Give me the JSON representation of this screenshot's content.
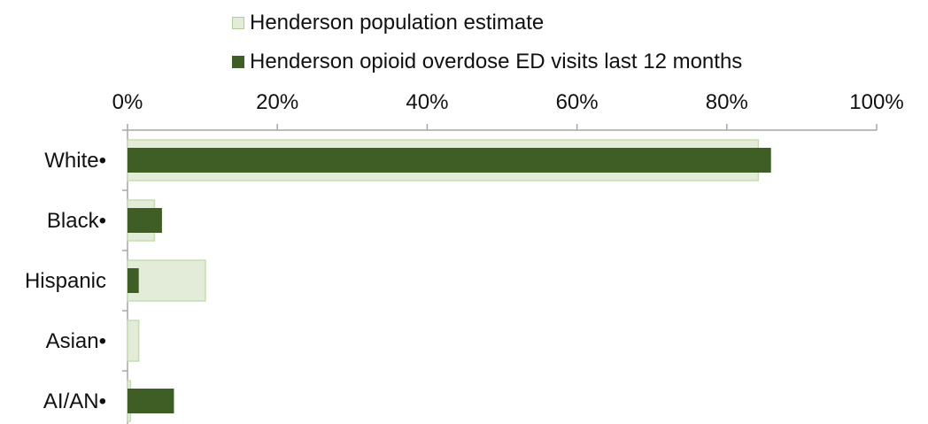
{
  "chart_data": {
    "type": "bar",
    "orientation": "horizontal",
    "categories": [
      "White•",
      "Black•",
      "Hispanic",
      "Asian•",
      "AI/AN•"
    ],
    "series": [
      {
        "name": "Henderson population estimate",
        "values": [
          84.2,
          3.6,
          10.4,
          1.5,
          0.4
        ],
        "color": "#e2ecd9",
        "stroke": "#c8dcb4"
      },
      {
        "name": "Henderson opioid overdose ED visits last 12 months",
        "values": [
          85.9,
          4.6,
          1.5,
          0.0,
          6.2
        ],
        "color": "#3f5e26"
      }
    ],
    "xlim": [
      0,
      100
    ],
    "xticks": [
      "0%",
      "20%",
      "40%",
      "60%",
      "80%",
      "100%"
    ],
    "axis_position": "top",
    "legend_position": "top",
    "grid": false
  }
}
